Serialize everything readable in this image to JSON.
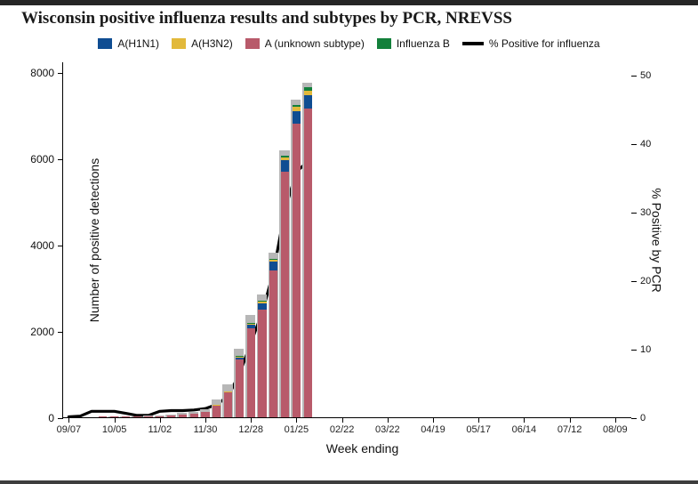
{
  "title": "Wisconsin positive influenza results and subtypes by PCR, NREVSS",
  "layout": {
    "plotWidth": 640,
    "plotHeight": 400,
    "barWidthFrac": 0.72,
    "background": "#ffffff",
    "lineColor": "#000000",
    "lineWidth": 3.2
  },
  "legend": [
    {
      "key": "h1n1",
      "label": "A(H1N1)",
      "type": "swatch",
      "color": "#0f4d92"
    },
    {
      "key": "h3n2",
      "label": "A(H3N2)",
      "type": "swatch",
      "color": "#e2b93b"
    },
    {
      "key": "unknown",
      "label": "A (unknown subtype)",
      "type": "swatch",
      "color": "#b85a6a"
    },
    {
      "key": "fluB",
      "label": "Influenza B",
      "type": "swatch",
      "color": "#13803b"
    },
    {
      "key": "line",
      "label": "% Positive for influenza",
      "type": "line"
    }
  ],
  "stackOrder": [
    "unknown",
    "h1n1",
    "h3n2",
    "fluB",
    "gray"
  ],
  "colors": {
    "h1n1": "#0f4d92",
    "h3n2": "#e2b93b",
    "unknown": "#b85a6a",
    "fluB": "#13803b",
    "gray": "#b7b7b7"
  },
  "axes": {
    "yLeft": {
      "title": "Number of positive detections",
      "min": 0,
      "max": 8250,
      "ticks": [
        0,
        2000,
        4000,
        6000,
        8000
      ]
    },
    "yRight": {
      "title": "% Positive by PCR",
      "min": 0,
      "max": 52,
      "ticks": [
        0,
        10,
        20,
        30,
        40,
        50
      ]
    },
    "x": {
      "title": "Week ending",
      "totalSlots": 50,
      "ticks": [
        {
          "slot": 0,
          "label": "09/07"
        },
        {
          "slot": 4,
          "label": "10/05"
        },
        {
          "slot": 8,
          "label": "11/02"
        },
        {
          "slot": 12,
          "label": "11/30"
        },
        {
          "slot": 16,
          "label": "12/28"
        },
        {
          "slot": 20,
          "label": "01/25"
        },
        {
          "slot": 24,
          "label": "02/22"
        },
        {
          "slot": 28,
          "label": "03/22"
        },
        {
          "slot": 32,
          "label": "04/19"
        },
        {
          "slot": 36,
          "label": "05/17"
        },
        {
          "slot": 40,
          "label": "06/14"
        },
        {
          "slot": 44,
          "label": "07/12"
        },
        {
          "slot": 48,
          "label": "08/09"
        }
      ]
    }
  },
  "weeks": [
    {
      "slot": 0,
      "h1n1": 0,
      "h3n2": 0,
      "unknown": 0,
      "fluB": 0,
      "gray": 0,
      "pct": 0.2
    },
    {
      "slot": 1,
      "h1n1": 0,
      "h3n2": 0,
      "unknown": 0,
      "fluB": 0,
      "gray": 0,
      "pct": 0.3
    },
    {
      "slot": 2,
      "h1n1": 0,
      "h3n2": 0,
      "unknown": 0,
      "fluB": 0,
      "gray": 0,
      "pct": 1.0
    },
    {
      "slot": 3,
      "h1n1": 0,
      "h3n2": 0,
      "unknown": 10,
      "fluB": 0,
      "gray": 0,
      "pct": 1.0
    },
    {
      "slot": 4,
      "h1n1": 0,
      "h3n2": 0,
      "unknown": 15,
      "fluB": 0,
      "gray": 10,
      "pct": 1.0
    },
    {
      "slot": 5,
      "h1n1": 0,
      "h3n2": 0,
      "unknown": 15,
      "fluB": 0,
      "gray": 10,
      "pct": 0.7
    },
    {
      "slot": 6,
      "h1n1": 0,
      "h3n2": 0,
      "unknown": 15,
      "fluB": 0,
      "gray": 10,
      "pct": 0.4
    },
    {
      "slot": 7,
      "h1n1": 0,
      "h3n2": 0,
      "unknown": 20,
      "fluB": 0,
      "gray": 15,
      "pct": 0.4
    },
    {
      "slot": 8,
      "h1n1": 0,
      "h3n2": 0,
      "unknown": 30,
      "fluB": 0,
      "gray": 20,
      "pct": 1.0
    },
    {
      "slot": 9,
      "h1n1": 0,
      "h3n2": 0,
      "unknown": 40,
      "fluB": 0,
      "gray": 30,
      "pct": 1.1
    },
    {
      "slot": 10,
      "h1n1": 0,
      "h3n2": 0,
      "unknown": 60,
      "fluB": 0,
      "gray": 40,
      "pct": 1.1
    },
    {
      "slot": 11,
      "h1n1": 0,
      "h3n2": 0,
      "unknown": 80,
      "fluB": 0,
      "gray": 50,
      "pct": 1.2
    },
    {
      "slot": 12,
      "h1n1": 0,
      "h3n2": 0,
      "unknown": 120,
      "fluB": 0,
      "gray": 70,
      "pct": 1.4
    },
    {
      "slot": 13,
      "h1n1": 5,
      "h3n2": 5,
      "unknown": 280,
      "fluB": 0,
      "gray": 120,
      "pct": 2.0
    },
    {
      "slot": 14,
      "h1n1": 15,
      "h3n2": 10,
      "unknown": 580,
      "fluB": 0,
      "gray": 160,
      "pct": 3.2
    },
    {
      "slot": 15,
      "h1n1": 40,
      "h3n2": 20,
      "unknown": 1350,
      "fluB": 5,
      "gray": 180,
      "pct": 6.5
    },
    {
      "slot": 16,
      "h1n1": 90,
      "h3n2": 30,
      "unknown": 2060,
      "fluB": 10,
      "gray": 190,
      "pct": 11.0
    },
    {
      "slot": 17,
      "h1n1": 140,
      "h3n2": 40,
      "unknown": 2500,
      "fluB": 15,
      "gray": 160,
      "pct": 15.5
    },
    {
      "slot": 18,
      "h1n1": 200,
      "h3n2": 55,
      "unknown": 3400,
      "fluB": 25,
      "gray": 140,
      "pct": 21.5
    },
    {
      "slot": 19,
      "h1n1": 260,
      "h3n2": 70,
      "unknown": 5700,
      "fluB": 40,
      "gray": 120,
      "pct": 30.5
    },
    {
      "slot": 20,
      "h1n1": 300,
      "h3n2": 90,
      "unknown": 6800,
      "fluB": 60,
      "gray": 110,
      "pct": 36.0
    },
    {
      "slot": 21,
      "h1n1": 320,
      "h3n2": 100,
      "unknown": 7150,
      "fluB": 80,
      "gray": 100,
      "pct": 37.5
    }
  ]
}
